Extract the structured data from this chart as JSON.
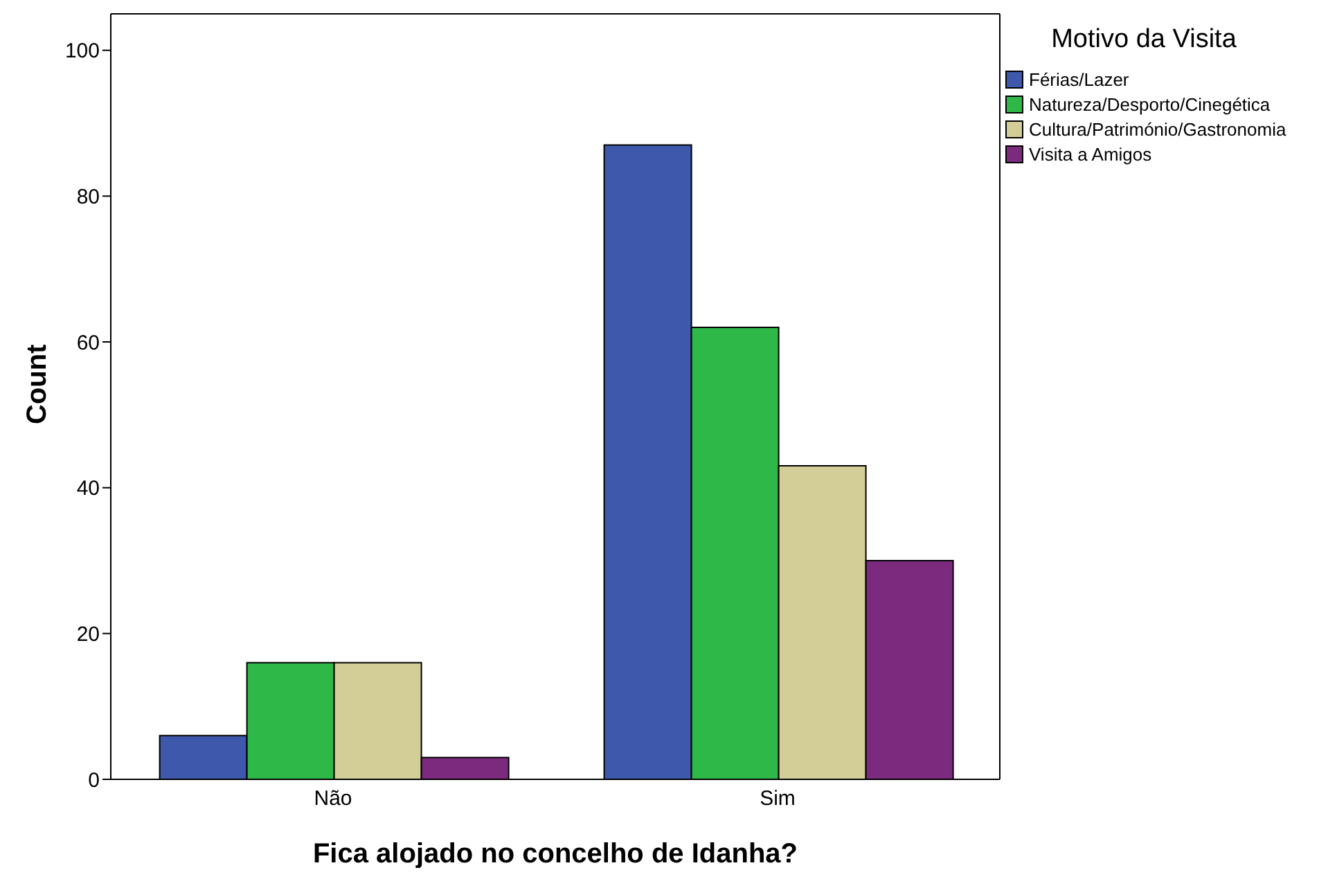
{
  "chart_data": {
    "type": "bar",
    "xlabel": "Fica alojado no concelho de Idanha?",
    "ylabel": "Count",
    "legend_title": "Motivo da Visita",
    "categories": [
      "Não",
      "Sim"
    ],
    "series": [
      {
        "name": "Férias/Lazer",
        "color": "#3e58ac",
        "values": [
          6,
          87
        ]
      },
      {
        "name": "Natureza/Desporto/Cinegética",
        "color": "#2eb848",
        "values": [
          16,
          62
        ]
      },
      {
        "name": "Cultura/Património/Gastronomia",
        "color": "#d3ce97",
        "values": [
          16,
          43
        ]
      },
      {
        "name": "Visita a Amigos",
        "color": "#7b2a7e",
        "values": [
          3,
          30
        ]
      }
    ],
    "ylim": [
      0,
      105
    ],
    "yticks": [
      0,
      20,
      40,
      60,
      80,
      100
    ],
    "grid": false,
    "legend": "top right"
  }
}
